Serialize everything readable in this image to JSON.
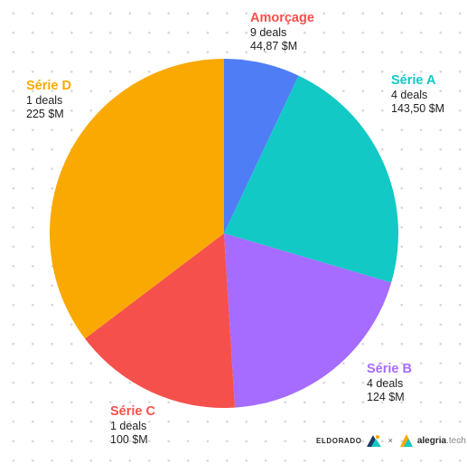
{
  "chart_data": {
    "type": "pie",
    "unit": "$M",
    "slices": [
      {
        "label": "Amorçage",
        "deals": "9 deals",
        "amount": "44,87 $M",
        "value": 44.87,
        "color": "#4f7df5"
      },
      {
        "label": "Série A",
        "deals": "4 deals",
        "amount": "143,50 $M",
        "value": 143.5,
        "color": "#12c9c6"
      },
      {
        "label": "Série B",
        "deals": "4 deals",
        "amount": "124 $M",
        "value": 124,
        "color": "#a56cff"
      },
      {
        "label": "Série C",
        "deals": "1 deals",
        "amount": "100 $M",
        "value": 100,
        "color": "#f6504c"
      },
      {
        "label": "Série D",
        "deals": "1 deals",
        "amount": "225 $M",
        "value": 225,
        "color": "#f9a901"
      }
    ]
  },
  "footer": {
    "brand1": "ELDORADO",
    "separator": "×",
    "brand2_main": "alegria",
    "brand2_tld": ".tech"
  }
}
